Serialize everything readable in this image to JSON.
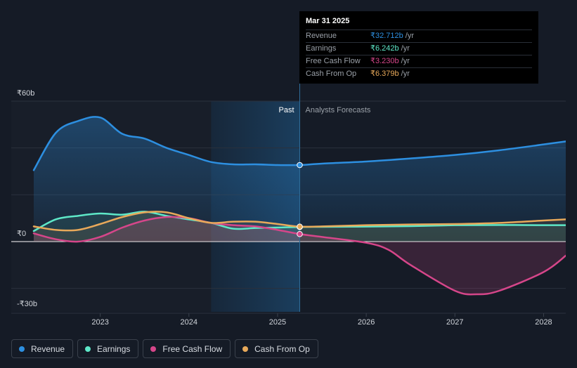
{
  "tooltip": {
    "date": "Mar 31 2025",
    "rows": [
      {
        "name": "Revenue",
        "value": "₹32.712b",
        "unit": "/yr",
        "color": "#2d8fe0"
      },
      {
        "name": "Earnings",
        "value": "₹6.242b",
        "unit": "/yr",
        "color": "#5ee8c8"
      },
      {
        "name": "Free Cash Flow",
        "value": "₹3.230b",
        "unit": "/yr",
        "color": "#d6468a"
      },
      {
        "name": "Cash From Op",
        "value": "₹6.379b",
        "unit": "/yr",
        "color": "#e8a95a"
      }
    ]
  },
  "regions": {
    "past": "Past",
    "forecast": "Analysts Forecasts"
  },
  "legend": [
    {
      "label": "Revenue",
      "color": "#2d8fe0"
    },
    {
      "label": "Earnings",
      "color": "#5ee8c8"
    },
    {
      "label": "Free Cash Flow",
      "color": "#d6468a"
    },
    {
      "label": "Cash From Op",
      "color": "#e8a95a"
    }
  ],
  "chart_data": {
    "type": "line",
    "y_tick_labels": [
      "₹60b",
      "₹0",
      "-₹30b"
    ],
    "ylim": [
      -30,
      60
    ],
    "xlim": [
      2022.25,
      2028.25
    ],
    "x_tick_labels": [
      "2023",
      "2024",
      "2025",
      "2026",
      "2027",
      "2028"
    ],
    "x_ticks": [
      2023,
      2024,
      2025,
      2026,
      2027,
      2028
    ],
    "highlight_date": 2025.25,
    "shaded_start": 2024.25,
    "grid": true,
    "legend_position": "bottom-left",
    "series": [
      {
        "name": "Revenue",
        "color": "#2d8fe0",
        "x": [
          2022.25,
          2022.5,
          2022.75,
          2023.0,
          2023.25,
          2023.5,
          2023.75,
          2024.0,
          2024.25,
          2024.5,
          2024.75,
          2025.0,
          2025.25,
          2025.5,
          2026.0,
          2026.5,
          2027.0,
          2027.5,
          2028.0,
          2028.25
        ],
        "y": [
          30.5,
          46.5,
          51.5,
          53.0,
          46.0,
          44.0,
          40.0,
          37.0,
          34.0,
          33.0,
          33.0,
          32.7,
          32.7,
          33.3,
          34.2,
          35.5,
          37.0,
          39.0,
          41.5,
          42.8
        ]
      },
      {
        "name": "Earnings",
        "color": "#5ee8c8",
        "x": [
          2022.25,
          2022.5,
          2022.75,
          2023.0,
          2023.25,
          2023.5,
          2023.75,
          2024.0,
          2024.25,
          2024.5,
          2024.75,
          2025.0,
          2025.25,
          2025.5,
          2026.0,
          2026.5,
          2027.0,
          2027.5,
          2028.0,
          2028.25
        ],
        "y": [
          4.5,
          9.5,
          11.0,
          12.0,
          11.5,
          12.8,
          11.0,
          9.5,
          8.0,
          5.5,
          5.8,
          6.0,
          6.24,
          6.3,
          6.4,
          6.6,
          7.0,
          7.1,
          7.0,
          7.0
        ]
      },
      {
        "name": "Free Cash Flow",
        "color": "#d6468a",
        "x": [
          2022.25,
          2022.5,
          2022.75,
          2023.0,
          2023.25,
          2023.5,
          2023.75,
          2024.0,
          2024.25,
          2024.5,
          2024.75,
          2025.0,
          2025.25,
          2025.5,
          2026.0,
          2026.25,
          2026.5,
          2027.0,
          2027.25,
          2027.5,
          2028.0,
          2028.25
        ],
        "y": [
          3.5,
          1.0,
          0.0,
          2.0,
          6.0,
          9.0,
          10.5,
          10.0,
          8.0,
          7.0,
          6.5,
          5.0,
          3.23,
          2.0,
          -0.5,
          -3.5,
          -10.0,
          -21.0,
          -22.5,
          -21.0,
          -13.0,
          -6.0
        ]
      },
      {
        "name": "Cash From Op",
        "color": "#e8a95a",
        "x": [
          2022.25,
          2022.5,
          2022.75,
          2023.0,
          2023.25,
          2023.5,
          2023.75,
          2024.0,
          2024.25,
          2024.5,
          2024.75,
          2025.0,
          2025.25,
          2025.5,
          2026.0,
          2026.5,
          2027.0,
          2027.5,
          2028.0,
          2028.25
        ],
        "y": [
          6.5,
          5.0,
          5.0,
          7.5,
          10.5,
          12.5,
          12.5,
          10.0,
          8.0,
          8.5,
          8.5,
          7.5,
          6.38,
          6.5,
          7.0,
          7.3,
          7.5,
          8.0,
          9.0,
          9.5
        ]
      }
    ]
  }
}
